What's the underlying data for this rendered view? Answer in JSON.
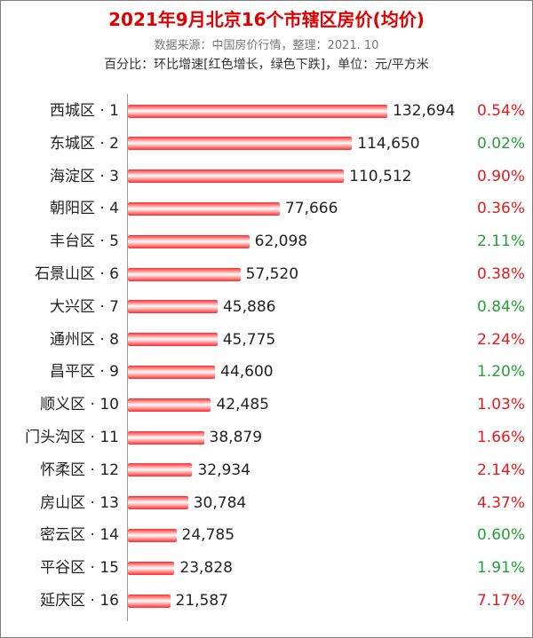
{
  "title": "2021年9月北京16个市辖区房价(均价)",
  "source": "数据来源：中国房价行情，整理：2021. 10",
  "note": "百分比：环比增速[红色增长，绿色下跌]，单位：元/平方米",
  "colors": {
    "up": "#e41a1c",
    "down": "#23a036",
    "bar": "#ff2a2a"
  },
  "chart_data": {
    "type": "bar",
    "orientation": "horizontal",
    "categories": [
      "西城区 · 1",
      "东城区 · 2",
      "海淀区 · 3",
      "朝阳区 · 4",
      "丰台区 · 5",
      "石景山区 · 6",
      "大兴区 · 7",
      "通州区 · 8",
      "昌平区 · 9",
      "顺义区 · 10",
      "门头沟区 · 11",
      "怀柔区 · 12",
      "房山区 · 13",
      "密云区 · 14",
      "平谷区 · 15",
      "延庆区 · 16"
    ],
    "values": [
      132694,
      114650,
      110512,
      77666,
      62098,
      57520,
      45886,
      45775,
      44600,
      42485,
      38879,
      32934,
      30784,
      24785,
      23828,
      21587
    ],
    "value_labels": [
      "132,694",
      "114,650",
      "110,512",
      "77,666",
      "62,098",
      "57,520",
      "45,886",
      "45,775",
      "44,600",
      "42,485",
      "38,879",
      "32,934",
      "30,784",
      "24,785",
      "23,828",
      "21,587"
    ],
    "changes": [
      "0.54%",
      "0.02%",
      "0.90%",
      "0.36%",
      "2.11%",
      "0.38%",
      "0.84%",
      "2.24%",
      "1.20%",
      "1.03%",
      "1.66%",
      "2.14%",
      "4.37%",
      "0.60%",
      "1.91%",
      "7.17%"
    ],
    "change_direction": [
      "up",
      "down",
      "up",
      "up",
      "down",
      "up",
      "down",
      "up",
      "down",
      "up",
      "up",
      "up",
      "up",
      "down",
      "down",
      "up"
    ],
    "xlim": [
      0,
      132694
    ],
    "grid": false,
    "legend": "none"
  }
}
